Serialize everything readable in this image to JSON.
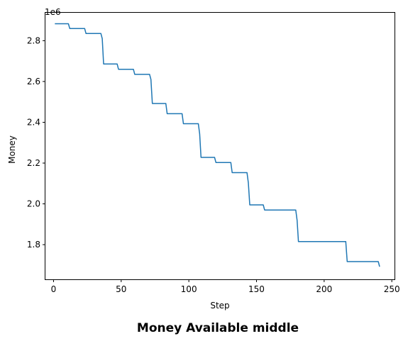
{
  "chart_data": {
    "type": "line",
    "title": "Money Available middle",
    "xlabel": "Step",
    "ylabel": "Money",
    "y_offset_label": "1e6",
    "xlim": [
      -6,
      252
    ],
    "ylim": [
      1630000,
      2937000
    ],
    "grid": false,
    "xticks": [
      0,
      50,
      100,
      150,
      200,
      250
    ],
    "yticks": [
      1800000,
      2000000,
      2200000,
      2400000,
      2600000,
      2800000
    ],
    "ytick_labels": [
      "1.8",
      "2.0",
      "2.2",
      "2.4",
      "2.6",
      "2.8"
    ],
    "series": [
      {
        "color": "#1f77b4",
        "x": [
          1,
          11,
          12,
          23,
          24,
          35,
          36,
          37,
          47,
          48,
          59,
          60,
          71,
          72,
          73,
          83,
          84,
          95,
          96,
          107,
          108,
          109,
          119,
          120,
          131,
          132,
          143,
          144,
          145,
          155,
          156,
          179,
          180,
          181,
          216,
          217,
          240,
          241
        ],
        "y": [
          2883000,
          2883000,
          2860000,
          2860000,
          2835000,
          2835000,
          2810000,
          2686000,
          2686000,
          2660000,
          2660000,
          2635000,
          2635000,
          2610000,
          2492000,
          2492000,
          2442000,
          2442000,
          2393000,
          2393000,
          2343000,
          2228000,
          2228000,
          2203000,
          2203000,
          2153000,
          2153000,
          2103000,
          1995000,
          1995000,
          1970000,
          1970000,
          1920000,
          1815000,
          1815000,
          1717000,
          1717000,
          1692000
        ]
      }
    ]
  }
}
